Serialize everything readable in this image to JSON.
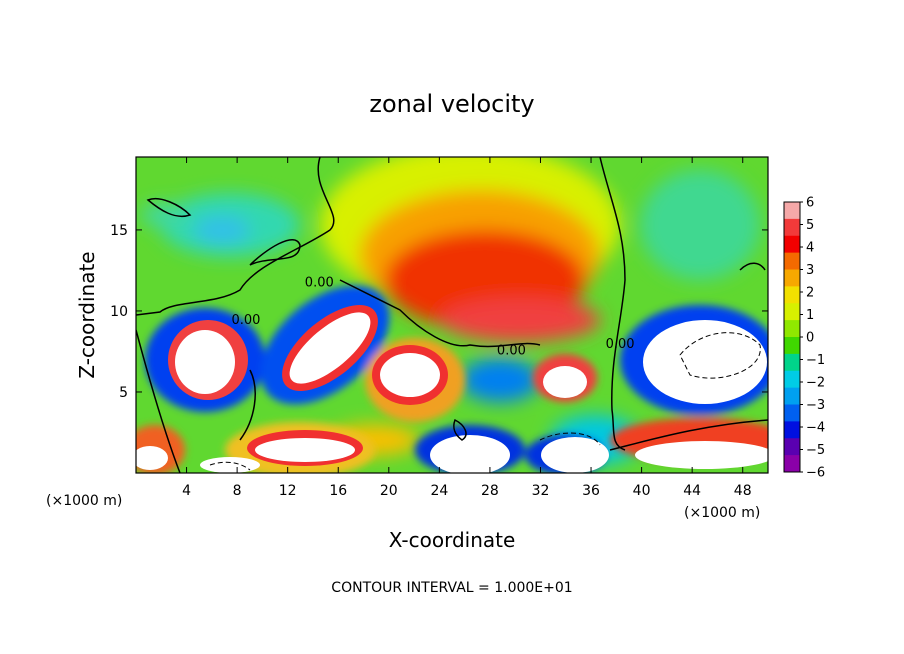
{
  "chart_data": {
    "type": "heatmap",
    "title": "zonal velocity",
    "xlabel": "X-coordinate",
    "ylabel": "Z-coordinate",
    "x_unit": "(×1000 m)",
    "y_unit": "(×1000 m)",
    "xlim": [
      0,
      50
    ],
    "ylim": [
      0,
      19.5
    ],
    "x_ticks": [
      4,
      8,
      12,
      16,
      20,
      24,
      28,
      32,
      36,
      40,
      44,
      48
    ],
    "y_ticks": [
      5,
      10,
      15
    ],
    "footer": "CONTOUR INTERVAL = 1.000E+01",
    "contour_label": "0.00",
    "colorbar": {
      "ticks": [
        6,
        5,
        4,
        3,
        2,
        1,
        0,
        -1,
        -2,
        -3,
        -4,
        -5,
        -6
      ],
      "range": [
        -6,
        6
      ],
      "colors": [
        "#f5a8a8",
        "#f23a3a",
        "#f20000",
        "#f46a00",
        "#f7a800",
        "#f2e000",
        "#d7f000",
        "#90e800",
        "#40d800",
        "#00d48a",
        "#00cce6",
        "#00a0f0",
        "#0060f0",
        "#0010e0",
        "#5a00b0",
        "#8a00a8"
      ]
    },
    "annotations": [
      {
        "text": "0.00",
        "x": 14.5,
        "y": 11.5
      },
      {
        "text": "0.00",
        "x": 8.7,
        "y": 9.2
      },
      {
        "text": "0.00",
        "x": 29.7,
        "y": 7.3
      },
      {
        "text": "0.00",
        "x": 38.3,
        "y": 7.7
      }
    ],
    "grid": false,
    "legend": "colorbar-right"
  }
}
